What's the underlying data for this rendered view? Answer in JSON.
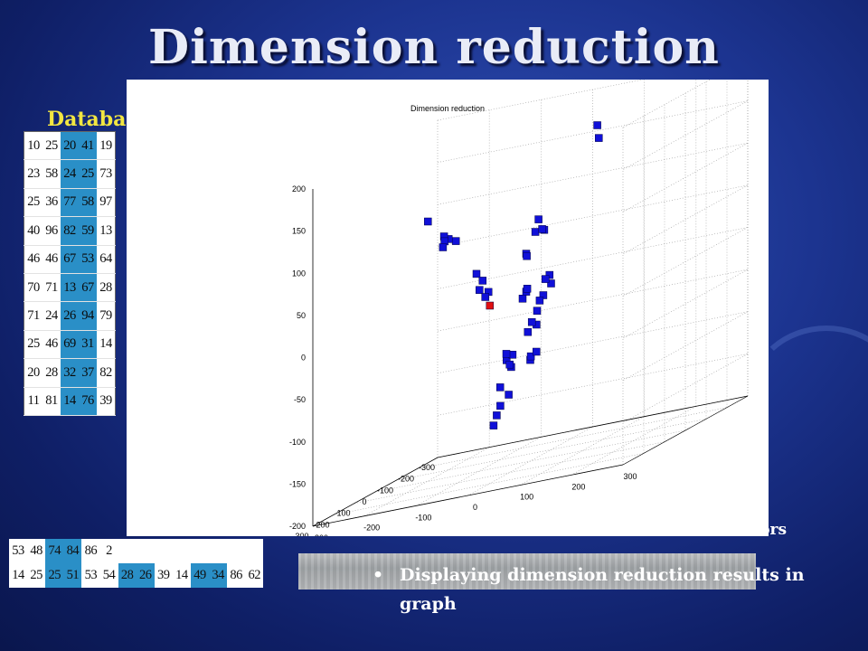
{
  "slide": {
    "title": "Dimension reduction",
    "db_label": "Databa",
    "bullet_fragment": "ctors",
    "bullet_main": "Displaying dimension reduction results in graph"
  },
  "database_rows": [
    [
      "10",
      "25",
      "20",
      "41",
      "19"
    ],
    [
      "23",
      "58",
      "24",
      "25",
      "73"
    ],
    [
      "25",
      "36",
      "77",
      "58",
      "97"
    ],
    [
      "40",
      "96",
      "82",
      "59",
      "13"
    ],
    [
      "46",
      "46",
      "67",
      "53",
      "64"
    ],
    [
      "70",
      "71",
      "13",
      "67",
      "28"
    ],
    [
      "71",
      "24",
      "26",
      "94",
      "79"
    ],
    [
      "25",
      "46",
      "69",
      "31",
      "14"
    ],
    [
      "20",
      "28",
      "32",
      "37",
      "82"
    ],
    [
      "11",
      "81",
      "14",
      "76",
      "39"
    ]
  ],
  "database_highlight_cols": [
    2,
    3
  ],
  "bottom_rows": [
    [
      "53",
      "48",
      "74",
      "84",
      "86",
      "2"
    ],
    [
      "14",
      "25",
      "25",
      "51",
      "53",
      "54",
      "28",
      "26",
      "39",
      "14",
      "49",
      "34",
      "86",
      "62"
    ]
  ],
  "bottom_highlight_cols": [
    2,
    3,
    6,
    7,
    10,
    11
  ],
  "chart_data": {
    "type": "scatter",
    "title": "Dimension reduction",
    "z_ticks": [
      "200",
      "150",
      "100",
      "50",
      "0",
      "-50",
      "-100",
      "-150",
      "-200"
    ],
    "x_ticks": [
      "300",
      "200",
      "100",
      "0",
      "-100",
      "-200",
      "-300"
    ],
    "y_ticks": [
      "-300",
      "-200",
      "-100",
      "0",
      "100",
      "200",
      "300"
    ],
    "xlim": [
      -300,
      300
    ],
    "ylim": [
      -300,
      300
    ],
    "zlim": [
      -200,
      200
    ],
    "grid": true,
    "series": [
      {
        "color": "#1010d8",
        "points": [
          [
            -260,
            25,
            160
          ],
          [
            -255,
            30,
            145
          ],
          [
            60,
            40,
            90
          ],
          [
            50,
            30,
            75
          ],
          [
            45,
            45,
            75
          ],
          [
            30,
            35,
            75
          ],
          [
            -80,
            -40,
            40
          ],
          [
            -70,
            -35,
            38
          ],
          [
            60,
            -80,
            40
          ],
          [
            55,
            -70,
            30
          ],
          [
            58,
            -75,
            20
          ],
          [
            52,
            -60,
            15
          ],
          [
            55,
            -65,
            10
          ],
          [
            -40,
            -160,
            75
          ],
          [
            -30,
            -170,
            80
          ],
          [
            -20,
            -175,
            85
          ],
          [
            -10,
            -170,
            80
          ],
          [
            10,
            -165,
            75
          ],
          [
            20,
            -190,
            110
          ],
          [
            -130,
            -15,
            5
          ],
          [
            -125,
            -10,
            -5
          ],
          [
            -100,
            -15,
            -15
          ],
          [
            -95,
            -20,
            -20
          ],
          [
            -80,
            -40,
            -5
          ],
          [
            -75,
            -45,
            -12
          ],
          [
            -85,
            -5,
            5
          ],
          [
            -60,
            -30,
            0
          ],
          [
            -20,
            5,
            -25
          ],
          [
            -5,
            10,
            -40
          ],
          [
            5,
            5,
            -35
          ],
          [
            -100,
            -45,
            -55
          ],
          [
            -60,
            -70,
            -80
          ],
          [
            -70,
            -65,
            -90
          ],
          [
            -50,
            -60,
            -85
          ],
          [
            0,
            0,
            -80
          ],
          [
            10,
            5,
            -75
          ],
          [
            20,
            20,
            -70
          ],
          [
            -45,
            -60,
            -120
          ],
          [
            -30,
            -70,
            -130
          ],
          [
            -25,
            -75,
            -140
          ],
          [
            -10,
            -75,
            -150
          ],
          [
            110,
            10,
            -60
          ],
          [
            140,
            10,
            -55
          ],
          [
            120,
            -10,
            -95
          ]
        ]
      },
      {
        "color": "#e01010",
        "points": [
          [
            70,
            -50,
            0
          ]
        ]
      }
    ]
  }
}
